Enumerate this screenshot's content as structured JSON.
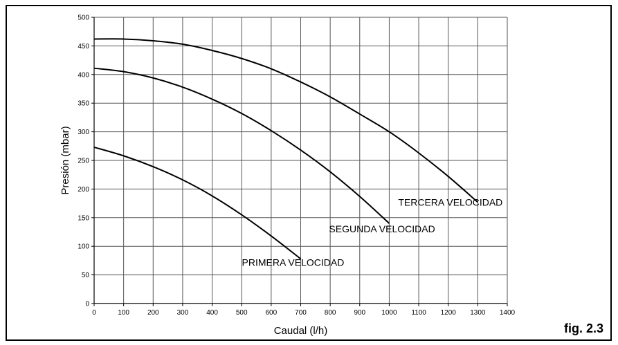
{
  "figure_label": "fig. 2.3",
  "chart_data": {
    "type": "line",
    "xlabel": "Caudal (l/h)",
    "ylabel": "Presión (mbar)",
    "xlim": [
      0,
      1400
    ],
    "ylim": [
      0,
      500
    ],
    "x_ticks": [
      "0",
      "100",
      "200",
      "300",
      "400",
      "500",
      "600",
      "700",
      "800",
      "900",
      "1000",
      "1100",
      "1200",
      "1300",
      "1400"
    ],
    "y_ticks": [
      "0",
      "50",
      "100",
      "150",
      "200",
      "250",
      "300",
      "350",
      "400",
      "450",
      "500"
    ],
    "grid": true,
    "legend": "none",
    "series": [
      {
        "name": "PRIMERA VELOCIDAD",
        "x": [
          0,
          100,
          200,
          300,
          400,
          500,
          600,
          700
        ],
        "y": [
          273,
          258,
          239,
          216,
          188,
          155,
          118,
          78
        ]
      },
      {
        "name": "SEGUNDA VELOCIDAD",
        "x": [
          0,
          100,
          200,
          300,
          400,
          500,
          600,
          700,
          800,
          900,
          1000
        ],
        "y": [
          411,
          405,
          394,
          378,
          357,
          332,
          302,
          268,
          230,
          187,
          140
        ]
      },
      {
        "name": "TERCERA VELOCIDAD",
        "x": [
          0,
          100,
          200,
          300,
          400,
          500,
          600,
          700,
          800,
          900,
          1000,
          1100,
          1200,
          1300
        ],
        "y": [
          462,
          462,
          459,
          453,
          442,
          428,
          410,
          387,
          361,
          331,
          300,
          263,
          222,
          177
        ]
      }
    ]
  }
}
